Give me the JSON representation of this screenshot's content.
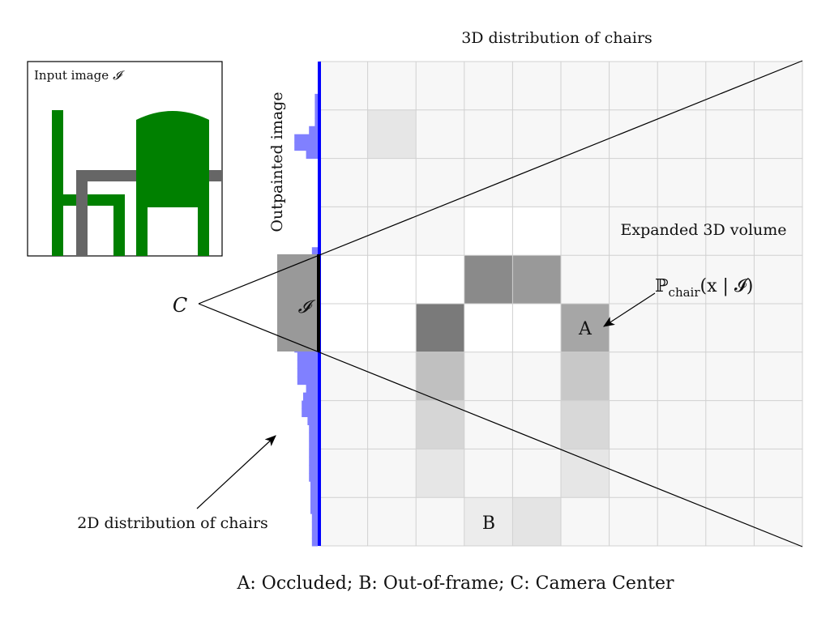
{
  "title": "3D distribution of chairs",
  "input_image": {
    "label": "Input image",
    "symbol": "𝓘",
    "colors": {
      "chair": "#008000",
      "table": "#666666"
    }
  },
  "outpainted_label": "Outpainted image",
  "expanded_label": "Expanded 3D volume",
  "camera_label": "C",
  "image_plane_label": "𝓘",
  "prob_label": {
    "prefix": "ℙ",
    "subscript": "chair",
    "args": "(x | 𝓘)"
  },
  "marker_a": "A",
  "marker_b": "B",
  "dist2d_label": "2D distribution of chairs",
  "caption": "A: Occluded; B: Out-of-frame; C: Camera Center",
  "colors": {
    "histogram": "#8080ff",
    "image_axis": "#0000ff",
    "grid_line": "#d0d0d0",
    "cell_default": "#f7f7f7",
    "in_image": "#999999"
  },
  "grid": {
    "cols": 10,
    "rows": 10,
    "cells": [
      {
        "row": 1,
        "col": 1,
        "shade": "#e6e6e6"
      },
      {
        "row": 3,
        "col": 3,
        "shade": "#ffffff"
      },
      {
        "row": 3,
        "col": 4,
        "shade": "#ffffff"
      },
      {
        "row": 4,
        "col": 0,
        "shade": "#ffffff"
      },
      {
        "row": 4,
        "col": 1,
        "shade": "#ffffff"
      },
      {
        "row": 4,
        "col": 2,
        "shade": "#ffffff"
      },
      {
        "row": 4,
        "col": 3,
        "shade": "#8a8a8a"
      },
      {
        "row": 4,
        "col": 4,
        "shade": "#999999"
      },
      {
        "row": 5,
        "col": 0,
        "shade": "#ffffff"
      },
      {
        "row": 5,
        "col": 1,
        "shade": "#ffffff"
      },
      {
        "row": 5,
        "col": 2,
        "shade": "#7a7a7a"
      },
      {
        "row": 5,
        "col": 3,
        "shade": "#ffffff"
      },
      {
        "row": 5,
        "col": 4,
        "shade": "#ffffff"
      },
      {
        "row": 5,
        "col": 5,
        "shade": "#a6a6a6"
      },
      {
        "row": 6,
        "col": 2,
        "shade": "#c0c0c0"
      },
      {
        "row": 6,
        "col": 5,
        "shade": "#c8c8c8"
      },
      {
        "row": 7,
        "col": 2,
        "shade": "#d6d6d6"
      },
      {
        "row": 7,
        "col": 5,
        "shade": "#d8d8d8"
      },
      {
        "row": 8,
        "col": 2,
        "shade": "#e6e6e6"
      },
      {
        "row": 8,
        "col": 5,
        "shade": "#e6e6e6"
      },
      {
        "row": 9,
        "col": 3,
        "shade": "#ececec"
      },
      {
        "row": 9,
        "col": 4,
        "shade": "#e4e4e4"
      }
    ]
  },
  "histogram_2d": {
    "rows_per_cell": 4,
    "values": [
      0.0,
      0.0,
      0.0,
      0.0,
      0.1,
      0.1,
      0.1,
      0.1,
      0.3,
      0.8,
      0.8,
      0.4,
      0.0,
      0.0,
      0.0,
      0.0,
      0.0,
      0.0,
      0.0,
      0.0,
      0.0,
      0.0,
      0.0,
      0.2,
      0.2,
      1.0,
      1.0,
      1.0,
      1.0,
      1.0,
      1.0,
      1.0,
      1.0,
      1.0,
      0.9,
      0.8,
      0.7,
      0.7,
      0.7,
      0.7,
      0.4,
      0.5,
      0.55,
      0.55,
      0.35,
      0.3,
      0.3,
      0.3,
      0.3,
      0.3,
      0.3,
      0.3,
      0.25,
      0.25,
      0.25,
      0.25,
      0.2,
      0.2,
      0.2,
      0.2
    ]
  }
}
